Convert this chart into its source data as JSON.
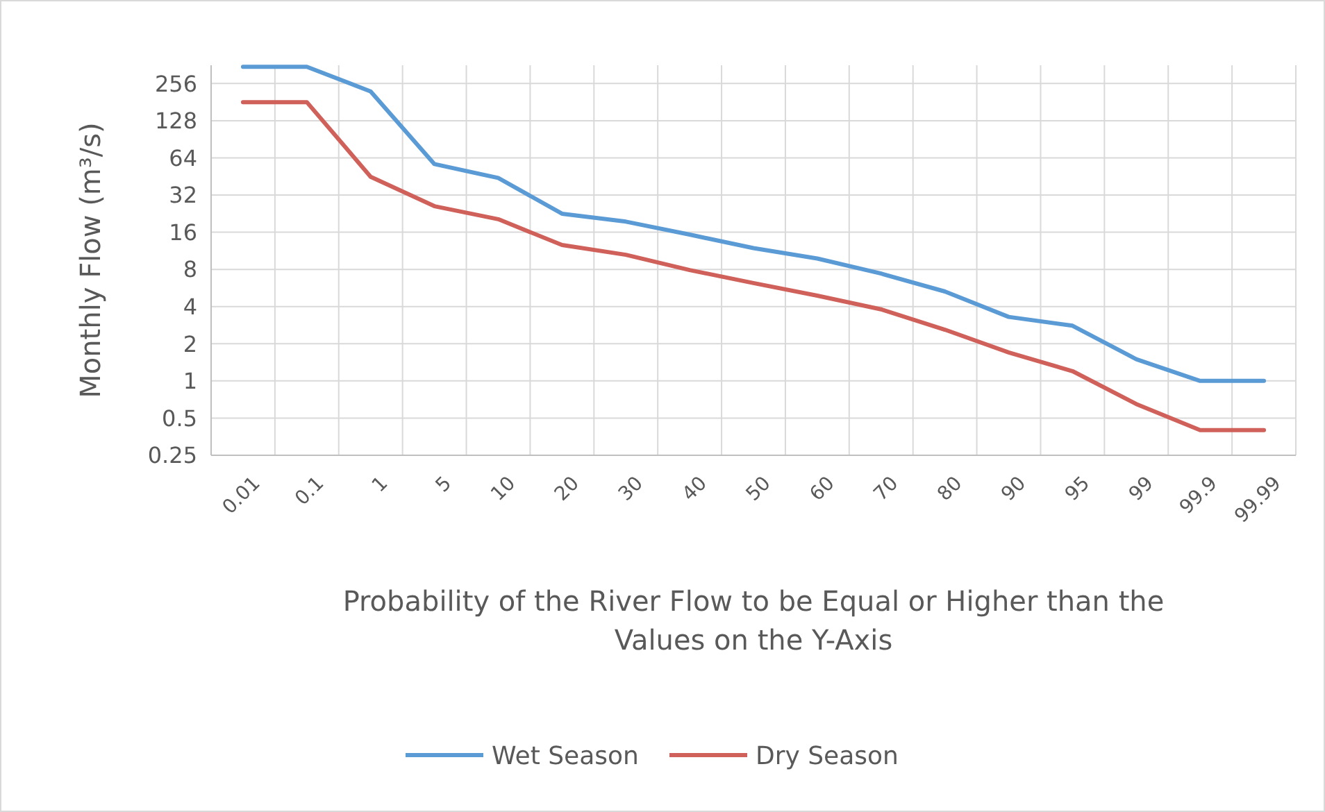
{
  "chart_data": {
    "type": "line",
    "xlabel": "Probability of the River Flow to be Equal or Higher than the Values on the Y-Axis",
    "ylabel": "Monthly Flow (m³/s)",
    "categories": [
      "0.01",
      "0.1",
      "1",
      "5",
      "10",
      "20",
      "30",
      "40",
      "50",
      "60",
      "70",
      "80",
      "90",
      "95",
      "99",
      "99.9",
      "99.99"
    ],
    "series": [
      {
        "name": "Wet Season",
        "color": "#5b9bd5",
        "values": [
          350,
          350,
          221,
          57,
          44,
          22.6,
          19.5,
          15.3,
          11.9,
          9.8,
          7.4,
          5.3,
          3.3,
          2.8,
          1.5,
          1,
          1
        ]
      },
      {
        "name": "Dry Season",
        "color": "#d0605a",
        "values": [
          181,
          181,
          45,
          26,
          20.4,
          12.6,
          10.5,
          7.9,
          6.2,
          4.9,
          3.8,
          2.6,
          1.7,
          1.2,
          0.65,
          0.4,
          0.4
        ]
      }
    ],
    "log": true,
    "ylim": [
      0.25,
      360
    ],
    "yticks": [
      0.25,
      0.5,
      1,
      2,
      4,
      8,
      16,
      32,
      64,
      128,
      256
    ],
    "grid": true,
    "legend": "bottom",
    "marker": "none",
    "line_style": "solid"
  }
}
